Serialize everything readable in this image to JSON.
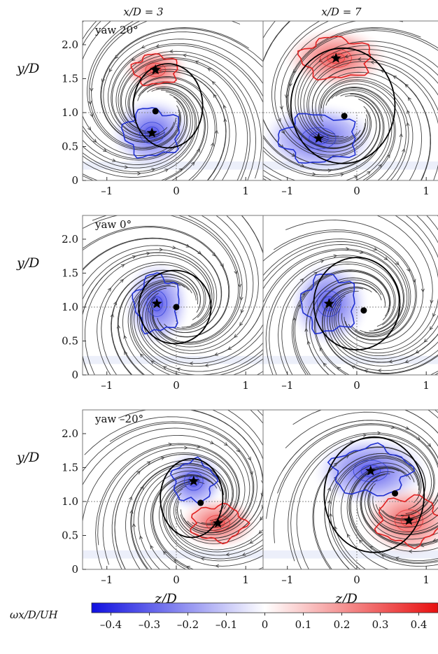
{
  "chart_data": {
    "type": "vector-field-contour",
    "columns": [
      {
        "key": "x3",
        "title": "x/D = 3"
      },
      {
        "key": "x7",
        "title": "x/D = 7"
      }
    ],
    "rows": [
      {
        "key": "yaw20",
        "label": "yaw 20°"
      },
      {
        "key": "yaw0",
        "label": "yaw 0°"
      },
      {
        "key": "yawm20",
        "label": "yaw –20°"
      }
    ],
    "xlabel": "z/D",
    "ylabel": "y/D",
    "xlim": [
      -1.35,
      1.25
    ],
    "ylim": [
      0,
      2.35
    ],
    "xticks": [
      {
        "v": -1,
        "t": "–1"
      },
      {
        "v": 0,
        "t": "0"
      },
      {
        "v": 1,
        "t": "1"
      }
    ],
    "yticks": [
      {
        "v": 0,
        "t": "0"
      },
      {
        "v": 0.5,
        "t": "0.5"
      },
      {
        "v": 1.0,
        "t": "1.0"
      },
      {
        "v": 1.5,
        "t": "1.5"
      },
      {
        "v": 2.0,
        "t": "2.0"
      }
    ],
    "reference_lines": {
      "y": 1.0,
      "z": 0
    },
    "panels": [
      {
        "row": "yaw20",
        "col": "x3",
        "wake_outline": {
          "cx": -0.12,
          "cy": 1.1,
          "rx": 0.5,
          "ry": 0.62
        },
        "wake_center": [
          -0.3,
          1.02
        ],
        "vortices": [
          {
            "sign": "positive",
            "z": -0.3,
            "y": 1.63,
            "rx": 0.32,
            "ry": 0.22
          },
          {
            "sign": "negative",
            "z": -0.35,
            "y": 0.7,
            "rx": 0.4,
            "ry": 0.35
          }
        ]
      },
      {
        "row": "yaw20",
        "col": "x7",
        "wake_outline": {
          "cx": -0.2,
          "cy": 1.1,
          "rx": 0.75,
          "ry": 0.85
        },
        "wake_center": [
          -0.18,
          0.95
        ],
        "vortices": [
          {
            "sign": "positive",
            "z": -0.3,
            "y": 1.8,
            "rx": 0.5,
            "ry": 0.3
          },
          {
            "sign": "negative",
            "z": -0.55,
            "y": 0.62,
            "rx": 0.55,
            "ry": 0.35
          }
        ]
      },
      {
        "row": "yaw0",
        "col": "x3",
        "wake_outline": {
          "cx": -0.02,
          "cy": 1.0,
          "rx": 0.52,
          "ry": 0.54
        },
        "wake_center": [
          0,
          1.0
        ],
        "vortices": [
          {
            "sign": "negative",
            "z": -0.28,
            "y": 1.05,
            "rx": 0.32,
            "ry": 0.42
          }
        ]
      },
      {
        "row": "yaw0",
        "col": "x7",
        "wake_outline": {
          "cx": 0.0,
          "cy": 1.05,
          "rx": 0.62,
          "ry": 0.68
        },
        "wake_center": [
          0.1,
          0.95
        ],
        "vortices": [
          {
            "sign": "negative",
            "z": -0.4,
            "y": 1.05,
            "rx": 0.38,
            "ry": 0.42
          }
        ]
      },
      {
        "row": "yawm20",
        "col": "x3",
        "wake_outline": {
          "cx": 0.22,
          "cy": 1.05,
          "rx": 0.45,
          "ry": 0.58
        },
        "wake_center": [
          0.35,
          0.98
        ],
        "vortices": [
          {
            "sign": "negative",
            "z": 0.25,
            "y": 1.3,
            "rx": 0.3,
            "ry": 0.3
          },
          {
            "sign": "positive",
            "z": 0.6,
            "y": 0.68,
            "rx": 0.38,
            "ry": 0.26
          }
        ]
      },
      {
        "row": "yawm20",
        "col": "x7",
        "wake_outline": {
          "cx": 0.25,
          "cy": 1.1,
          "rx": 0.72,
          "ry": 0.85
        },
        "wake_center": [
          0.55,
          1.12
        ],
        "vortices": [
          {
            "sign": "negative",
            "z": 0.2,
            "y": 1.45,
            "rx": 0.55,
            "ry": 0.35
          },
          {
            "sign": "positive",
            "z": 0.75,
            "y": 0.72,
            "rx": 0.45,
            "ry": 0.35
          }
        ]
      }
    ],
    "colorbar": {
      "label": "ωx/D/UH",
      "range": [
        -0.45,
        0.45
      ],
      "ticks": [
        {
          "v": -0.4,
          "t": "–0.4"
        },
        {
          "v": -0.3,
          "t": "–0.3"
        },
        {
          "v": -0.2,
          "t": "–0.2"
        },
        {
          "v": -0.1,
          "t": "–0.1"
        },
        {
          "v": 0,
          "t": "0"
        },
        {
          "v": 0.1,
          "t": "0.1"
        },
        {
          "v": 0.2,
          "t": "0.2"
        },
        {
          "v": 0.3,
          "t": "0.3"
        },
        {
          "v": 0.4,
          "t": "0.4"
        }
      ],
      "colors": {
        "negative": "#1010e0",
        "zero": "#ffffff",
        "positive": "#e81010"
      }
    },
    "colors": {
      "positive_contour": "#e02020",
      "negative_contour": "#2030d0",
      "wake_outline": "#000000",
      "streamline": "#222222",
      "reference_line": "#888888"
    }
  }
}
